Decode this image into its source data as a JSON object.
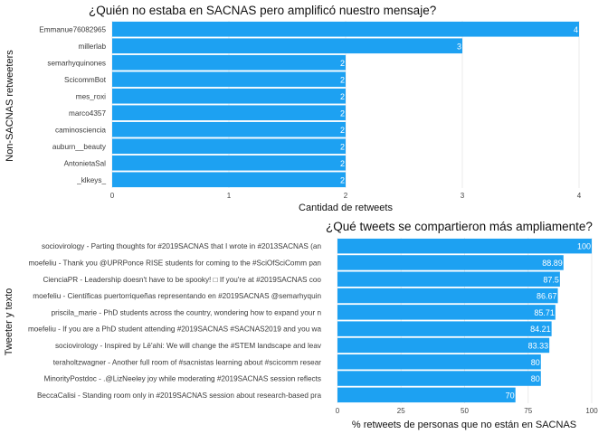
{
  "colors": {
    "bar": "#1DA1F2",
    "grid": "#ebebeb",
    "background": "#ffffff"
  },
  "chart_data": [
    {
      "type": "bar",
      "orientation": "horizontal",
      "title": "¿Quién no estaba en SACNAS pero amplificó nuestro mensaje?",
      "xlabel": "Cantidad de retweets",
      "ylabel": "Non-SACNAS retweeters",
      "categories": [
        "Emmanue76082965",
        "millerlab",
        "semarhyquinones",
        "ScicommBot",
        "mes_roxi",
        "marco4357",
        "caminosciencia",
        "auburn__beauty",
        "AntonietaSal",
        "_klkeys_"
      ],
      "values": [
        4,
        3,
        2,
        2,
        2,
        2,
        2,
        2,
        2,
        2
      ],
      "xlim": [
        0,
        4
      ],
      "xticks": [
        0,
        1,
        2,
        3,
        4
      ],
      "grid": true
    },
    {
      "type": "bar",
      "orientation": "horizontal",
      "title": "¿Qué tweets se compartieron más ampliamente?",
      "xlabel": "% retweets de personas que no están en SACNAS",
      "ylabel": "Tweeter y texto",
      "categories": [
        "sociovirology - Parting thoughts for #2019SACNAS that I wrote in #2013SACNAS (an",
        "moefeliu - Thank you @UPRPonce RISE students for coming to the #SciOfSciComm pan",
        "CienciaPR - Leadership doesn't have to be spooky! □ If you're at  #2019SACNAS coo",
        "moefeliu - Científicas puertorriqueñas representando en #2019SACNAS @semarhyquin",
        "priscila_marie - PhD students across the country, wondering how to expand your n",
        "moefeliu - If you are a PhD student attending #2019SACNAS #SACNAS2019 and you wa",
        "sociovirology - Inspired by Lē'ahi: We will change the  #STEM landscape and leav",
        "teraholtzwagner - Another full room of #sacnistas learning about #scicomm resear",
        "MinorityPostdoc - .@LizNeeley joy while moderating #2019SACNAS session reflects",
        "BeccaCalisi - Standing room only in #2019SACNAS session about research-based pra"
      ],
      "values": [
        100,
        88.89,
        87.5,
        86.67,
        85.71,
        84.21,
        83.33,
        80,
        80,
        70
      ],
      "value_labels": [
        "100",
        "88.89",
        "87.5",
        "86.67",
        "85.71",
        "84.21",
        "83.33",
        "80",
        "80",
        "70"
      ],
      "xlim": [
        0,
        100
      ],
      "xticks": [
        0,
        25,
        50,
        75,
        100
      ],
      "grid": true
    }
  ]
}
